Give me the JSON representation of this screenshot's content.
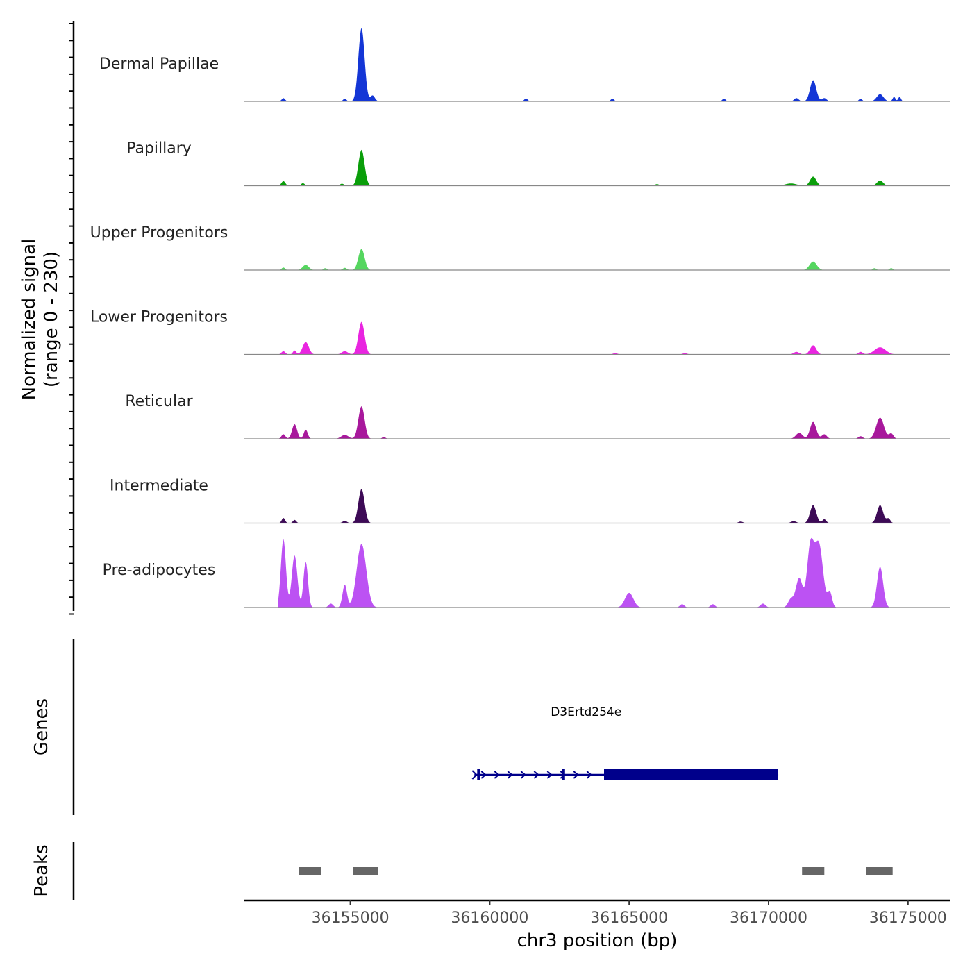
{
  "chart_data": {
    "type": "area",
    "chromosome": "chr3",
    "xlabel": "chr3 position (bp)",
    "ylabel_line1": "Normalized signal",
    "ylabel_line2": "(range 0 - 230)",
    "ylim": [
      0,
      230
    ],
    "xlim": [
      36151200,
      36176500
    ],
    "x_ticks": [
      36155000,
      36160000,
      36165000,
      36170000,
      36175000
    ],
    "x_tick_labels": [
      "36155000",
      "36160000",
      "36165000",
      "36170000",
      "36175000"
    ],
    "tracks": [
      {
        "name": "Dermal Papillae",
        "color": "#1436D6",
        "peaks": [
          {
            "pos": 36155400,
            "height": 225,
            "width": 110
          },
          {
            "pos": 36171600,
            "height": 65,
            "width": 110
          },
          {
            "pos": 36174000,
            "height": 22,
            "width": 120
          },
          {
            "pos": 36174500,
            "height": 14,
            "width": 50
          },
          {
            "pos": 36174700,
            "height": 14,
            "width": 50
          },
          {
            "pos": 36155800,
            "height": 18,
            "width": 80
          },
          {
            "pos": 36152600,
            "height": 10,
            "width": 60
          },
          {
            "pos": 36154800,
            "height": 8,
            "width": 60
          },
          {
            "pos": 36161300,
            "height": 9,
            "width": 60
          },
          {
            "pos": 36164400,
            "height": 8,
            "width": 60
          },
          {
            "pos": 36168400,
            "height": 8,
            "width": 60
          },
          {
            "pos": 36171000,
            "height": 10,
            "width": 80
          },
          {
            "pos": 36172000,
            "height": 10,
            "width": 80
          },
          {
            "pos": 36173300,
            "height": 8,
            "width": 60
          }
        ]
      },
      {
        "name": "Papillary",
        "color": "#0A9E0A",
        "peaks": [
          {
            "pos": 36155400,
            "height": 110,
            "width": 110
          },
          {
            "pos": 36171600,
            "height": 28,
            "width": 110
          },
          {
            "pos": 36174000,
            "height": 16,
            "width": 110
          },
          {
            "pos": 36152600,
            "height": 14,
            "width": 70
          },
          {
            "pos": 36153300,
            "height": 8,
            "width": 60
          },
          {
            "pos": 36154700,
            "height": 6,
            "width": 80
          },
          {
            "pos": 36170800,
            "height": 7,
            "width": 200
          },
          {
            "pos": 36166000,
            "height": 5,
            "width": 80
          }
        ]
      },
      {
        "name": "Upper Progenitors",
        "color": "#55D65F",
        "peaks": [
          {
            "pos": 36155400,
            "height": 65,
            "width": 110
          },
          {
            "pos": 36171600,
            "height": 26,
            "width": 130
          },
          {
            "pos": 36153400,
            "height": 16,
            "width": 110
          },
          {
            "pos": 36152600,
            "height": 8,
            "width": 60
          },
          {
            "pos": 36154800,
            "height": 7,
            "width": 70
          },
          {
            "pos": 36154100,
            "height": 6,
            "width": 60
          },
          {
            "pos": 36173800,
            "height": 6,
            "width": 60
          },
          {
            "pos": 36174400,
            "height": 6,
            "width": 60
          }
        ]
      },
      {
        "name": "Lower Progenitors",
        "color": "#E925E0",
        "peaks": [
          {
            "pos": 36155400,
            "height": 100,
            "width": 110
          },
          {
            "pos": 36153400,
            "height": 38,
            "width": 110
          },
          {
            "pos": 36171600,
            "height": 28,
            "width": 110
          },
          {
            "pos": 36174000,
            "height": 22,
            "width": 200
          },
          {
            "pos": 36152600,
            "height": 10,
            "width": 70
          },
          {
            "pos": 36153000,
            "height": 12,
            "width": 60
          },
          {
            "pos": 36154800,
            "height": 10,
            "width": 110
          },
          {
            "pos": 36171000,
            "height": 8,
            "width": 100
          },
          {
            "pos": 36173300,
            "height": 8,
            "width": 80
          },
          {
            "pos": 36164500,
            "height": 4,
            "width": 80
          },
          {
            "pos": 36167000,
            "height": 4,
            "width": 80
          }
        ]
      },
      {
        "name": "Reticular",
        "color": "#A8189C",
        "peaks": [
          {
            "pos": 36155400,
            "height": 100,
            "width": 110
          },
          {
            "pos": 36174000,
            "height": 65,
            "width": 140
          },
          {
            "pos": 36171600,
            "height": 52,
            "width": 110
          },
          {
            "pos": 36153000,
            "height": 45,
            "width": 90
          },
          {
            "pos": 36153400,
            "height": 28,
            "width": 70
          },
          {
            "pos": 36152600,
            "height": 14,
            "width": 70
          },
          {
            "pos": 36154800,
            "height": 12,
            "width": 130
          },
          {
            "pos": 36171100,
            "height": 18,
            "width": 120
          },
          {
            "pos": 36172000,
            "height": 14,
            "width": 90
          },
          {
            "pos": 36174400,
            "height": 16,
            "width": 80
          },
          {
            "pos": 36173300,
            "height": 8,
            "width": 80
          },
          {
            "pos": 36156200,
            "height": 6,
            "width": 60
          }
        ]
      },
      {
        "name": "Intermediate",
        "color": "#3D0A56",
        "peaks": [
          {
            "pos": 36155400,
            "height": 105,
            "width": 110
          },
          {
            "pos": 36171600,
            "height": 55,
            "width": 110
          },
          {
            "pos": 36174000,
            "height": 55,
            "width": 110
          },
          {
            "pos": 36152600,
            "height": 16,
            "width": 60
          },
          {
            "pos": 36153000,
            "height": 10,
            "width": 60
          },
          {
            "pos": 36172000,
            "height": 12,
            "width": 70
          },
          {
            "pos": 36174300,
            "height": 14,
            "width": 70
          },
          {
            "pos": 36170900,
            "height": 6,
            "width": 100
          },
          {
            "pos": 36154800,
            "height": 7,
            "width": 80
          },
          {
            "pos": 36169000,
            "height": 5,
            "width": 80
          }
        ]
      },
      {
        "name": "Pre-adipocytes",
        "color": "#BC52F3",
        "peaks": [
          {
            "pos": 36152600,
            "height": 210,
            "width": 90
          },
          {
            "pos": 36153000,
            "height": 160,
            "width": 100
          },
          {
            "pos": 36153400,
            "height": 140,
            "width": 80
          },
          {
            "pos": 36155400,
            "height": 195,
            "width": 170
          },
          {
            "pos": 36171800,
            "height": 195,
            "width": 150
          },
          {
            "pos": 36171500,
            "height": 180,
            "width": 120
          },
          {
            "pos": 36171100,
            "height": 90,
            "width": 120
          },
          {
            "pos": 36174000,
            "height": 125,
            "width": 110
          },
          {
            "pos": 36154800,
            "height": 70,
            "width": 80
          },
          {
            "pos": 36165000,
            "height": 45,
            "width": 150
          },
          {
            "pos": 36170800,
            "height": 25,
            "width": 100
          },
          {
            "pos": 36172200,
            "height": 45,
            "width": 80
          },
          {
            "pos": 36154300,
            "height": 12,
            "width": 80
          },
          {
            "pos": 36169800,
            "height": 12,
            "width": 90
          },
          {
            "pos": 36166900,
            "height": 10,
            "width": 80
          },
          {
            "pos": 36168000,
            "height": 10,
            "width": 80
          }
        ]
      }
    ],
    "genes": [
      {
        "name": "D3Ertd254e",
        "start": 36159450,
        "end": 36170350,
        "strand": "+",
        "utr_end": 36164100,
        "exons": [
          36159600,
          36162650
        ],
        "color": "#00008B"
      }
    ],
    "peaks_track_label": "Peaks",
    "genes_track_label": "Genes",
    "called_peaks": [
      {
        "start": 36153150,
        "end": 36153950
      },
      {
        "start": 36155100,
        "end": 36156000
      },
      {
        "start": 36171200,
        "end": 36172000
      },
      {
        "start": 36173500,
        "end": 36174450
      }
    ]
  }
}
